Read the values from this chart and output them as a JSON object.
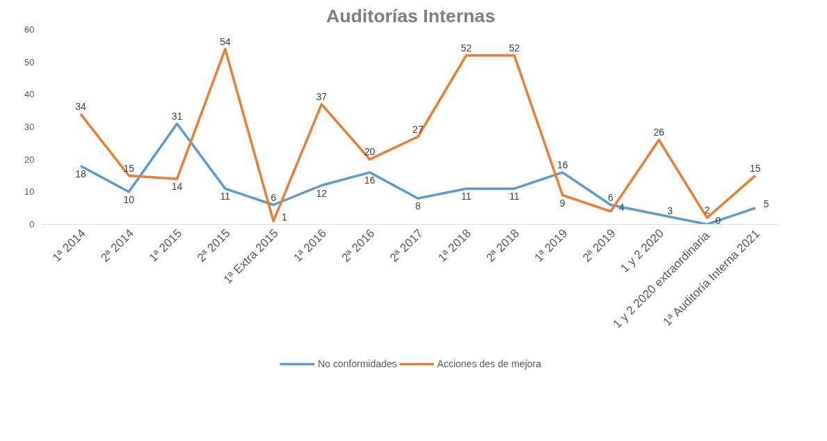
{
  "chart_data": {
    "type": "line",
    "title": "Auditorías Internas",
    "categories": [
      "1ª 2014",
      "2ª 2014",
      "1ª 2015",
      "2ª 2015",
      "1ª Extra 2015",
      "1ª 2016",
      "2ª 2016",
      "2ª 2017",
      "1ª 2018",
      "2ª 2018",
      "1ª 2019",
      "2ª 2019",
      "1 y 2 2020",
      "1 y 2 2020  extraordinaria",
      "1ª Auditoría Interna 2021"
    ],
    "series": [
      {
        "name": "No conformidades",
        "color": "#5b9bd5",
        "values": [
          18,
          10,
          31,
          11,
          6,
          12,
          16,
          8,
          11,
          11,
          16,
          6,
          3,
          0,
          5
        ]
      },
      {
        "name": "Acciones des de mejora",
        "color": "#ed7d31",
        "values": [
          34,
          15,
          14,
          54,
          1,
          37,
          20,
          27,
          52,
          52,
          9,
          4,
          26,
          2,
          15
        ]
      }
    ],
    "ylim": [
      0,
      60
    ],
    "yticks": [
      0,
      10,
      20,
      30,
      40,
      50,
      60
    ],
    "grid": false,
    "legend": "bottom",
    "data_labels": true,
    "marker": "none",
    "line_style": "solid"
  }
}
